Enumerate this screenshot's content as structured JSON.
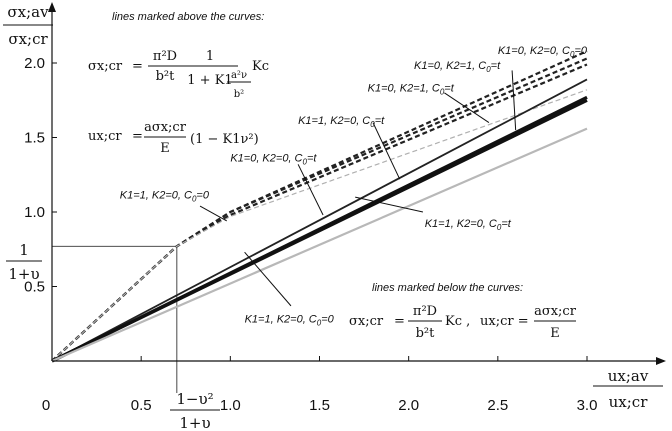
{
  "chart_data": {
    "type": "line",
    "xlim": [
      0,
      3.0
    ],
    "ylim": [
      0,
      2.1
    ],
    "x_ticks": [
      "0",
      "0.5",
      "1.0",
      "1.5",
      "2.0",
      "2.5",
      "3.0"
    ],
    "x_tick_values": [
      0,
      0.5,
      1.0,
      1.5,
      2.0,
      2.5,
      3.0
    ],
    "y_ticks": [
      "0.5",
      "1.0",
      "1.5",
      "2.0"
    ],
    "y_tick_values": [
      0.5,
      1.0,
      1.5,
      2.0
    ],
    "grid": false,
    "y_axis_label": {
      "num": "σx;av",
      "den": "σx;cr"
    },
    "x_axis_label": {
      "num": "ux;av",
      "den": "ux;cr"
    },
    "x_marker": {
      "num": "1−υ²",
      "den": "1+υ",
      "value": 0.7
    },
    "y_marker": {
      "num": "1",
      "den": "1+υ",
      "value": 0.77
    },
    "series": [
      {
        "style": "dashed-bold",
        "color": "#222222",
        "x": [
          0,
          0.7,
          1.0,
          3.0
        ],
        "y": [
          0,
          0.77,
          1.0,
          2.08
        ]
      },
      {
        "style": "dashed-bold",
        "color": "#222222",
        "x": [
          0,
          0.7,
          1.0,
          3.0
        ],
        "y": [
          0,
          0.77,
          1.0,
          2.03
        ]
      },
      {
        "style": "dashed-bold",
        "color": "#222222",
        "x": [
          0,
          0.7,
          1.0,
          3.0
        ],
        "y": [
          0,
          0.77,
          0.98,
          1.99
        ]
      },
      {
        "style": "dashed-thin",
        "color": "#b0b0b0",
        "x": [
          0,
          0.7,
          1.0,
          3.0
        ],
        "y": [
          0,
          0.77,
          0.97,
          1.82
        ]
      },
      {
        "style": "solid",
        "color": "#222222",
        "x": [
          0,
          3.0
        ],
        "y": [
          0,
          1.89
        ]
      },
      {
        "style": "solid-bold",
        "color": "#111111",
        "x": [
          0,
          3.0
        ],
        "y": [
          0,
          1.77
        ]
      },
      {
        "style": "solid-bold",
        "color": "#111111",
        "x": [
          0,
          3.0
        ],
        "y": [
          0,
          1.75
        ]
      },
      {
        "style": "solid-light",
        "color": "#b8b8b8",
        "x": [
          0,
          3.0
        ],
        "y": [
          0,
          1.56
        ]
      }
    ],
    "annotations": [
      {
        "text": "K1=0, K2=0, C0=0",
        "main": "K1=0, K2=0, C",
        "sub": "0",
        "tail": "=0",
        "tx": 2.5,
        "ty": 2.06,
        "ax": 2.5,
        "ay": 2.06,
        "bx": 2.5,
        "by": 2.06
      },
      {
        "text": "K1=0, K2=1, C0=t",
        "main": "K1=0, K2=1, C",
        "sub": "0",
        "tail": "=t",
        "tx": 2.03,
        "ty": 1.96,
        "ax": 2.58,
        "ay": 1.95,
        "bx": 2.6,
        "by": 1.55
      },
      {
        "text": "K1=0, K2=1, C0=t",
        "main": "K1=0, K2=1, C",
        "sub": "0",
        "tail": "=t",
        "tx": 1.77,
        "ty": 1.81,
        "ax": 2.2,
        "ay": 1.8,
        "bx": 2.45,
        "by": 1.6
      },
      {
        "text": "K1=1, K2=0, C0=t",
        "main": "K1=1, K2=0, C",
        "sub": "0",
        "tail": "=t",
        "tx": 1.38,
        "ty": 1.59,
        "ax": 1.8,
        "ay": 1.6,
        "bx": 1.95,
        "by": 1.22
      },
      {
        "text": "K1=0, K2=0, C0=t",
        "main": "K1=0, K2=0, C",
        "sub": "0",
        "tail": "=t",
        "tx": 1.0,
        "ty": 1.34,
        "ax": 1.38,
        "ay": 1.32,
        "bx": 1.52,
        "by": 0.98
      },
      {
        "text": "K1=1, K2=0, C0=0",
        "main": "K1=1, K2=0, C",
        "sub": "0",
        "tail": "=0",
        "tx": 0.38,
        "ty": 1.09,
        "ax": 0.83,
        "ay": 1.04,
        "bx": 0.98,
        "by": 0.94
      },
      {
        "text": "K1=1, K2=0, C0=0",
        "main": "K1=1, K2=0, C",
        "sub": "0",
        "tail": "=0",
        "tx": 1.08,
        "ty": 0.26,
        "ax": 1.34,
        "ay": 0.37,
        "bx": 1.08,
        "by": 0.73
      },
      {
        "text": "K1=1, K2=0, C0=t",
        "main": "K1=1, K2=0, C",
        "sub": "0",
        "tail": "=t",
        "tx": 2.09,
        "ty": 0.9,
        "ax": 2.08,
        "ay": 1.0,
        "bx": 1.7,
        "by": 1.1
      }
    ],
    "notes": {
      "above": "lines marked above the curves:",
      "below": "lines marked below the curves:"
    },
    "formulas": {
      "sigma_label": "σx;cr",
      "eq": "=",
      "pi2D": "π²D",
      "b2t": "b²t",
      "one": "1",
      "den": "1 + K1",
      "a2v": "a²ν",
      "b2": "b²",
      "Kc": "Kc",
      "u_label": "ux;cr",
      "asig": "aσx;cr",
      "E": "E",
      "paren": "(1 − K1ν²)",
      "u_eq_below": "ux;cr =",
      "Kc_comma": "Kc ,"
    }
  }
}
